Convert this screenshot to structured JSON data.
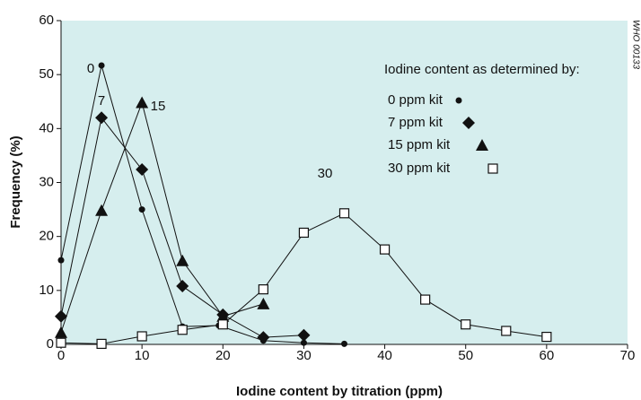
{
  "chart_data": {
    "type": "line",
    "x_label": "Iodine content by titration (ppm)",
    "y_label": "Frequency (%)",
    "legend_title": "Iodine content as determined by:",
    "credit": "WHO 00133",
    "xlim": [
      0,
      70
    ],
    "xticks": [
      0,
      10,
      20,
      30,
      40,
      50,
      60,
      70
    ],
    "ylim": [
      0,
      60
    ],
    "yticks": [
      0,
      10,
      20,
      30,
      40,
      50,
      60
    ],
    "background": "#d6eeee",
    "annotations": [
      "0",
      "7",
      "15",
      "30"
    ],
    "series": [
      {
        "name": "0 ppm kit",
        "marker": "circle",
        "color": "#111111",
        "x": [
          0,
          5,
          10,
          15,
          19.5,
          25,
          30,
          35
        ],
        "values": [
          15.6,
          51.7,
          25,
          3.3,
          3.5,
          0.7,
          0.3,
          0.1
        ]
      },
      {
        "name": "7 ppm kit",
        "marker": "diamond",
        "color": "#111111",
        "x": [
          0,
          5,
          10,
          15,
          20,
          25,
          30
        ],
        "values": [
          5.2,
          42,
          32.4,
          10.8,
          5.5,
          1.3,
          1.7
        ]
      },
      {
        "name": "15 ppm kit",
        "marker": "triangle",
        "color": "#111111",
        "x": [
          0,
          5,
          10,
          15,
          20,
          25
        ],
        "values": [
          2.2,
          24.8,
          44.8,
          15.5,
          5.2,
          7.5
        ]
      },
      {
        "name": "30 ppm kit",
        "marker": "square",
        "color": "#111111",
        "x": [
          0,
          5,
          10,
          15,
          20,
          25,
          30,
          35,
          40,
          45,
          50,
          55,
          60
        ],
        "values": [
          0.3,
          0.1,
          1.5,
          2.7,
          3.7,
          10.2,
          20.7,
          24.3,
          17.6,
          8.3,
          3.7,
          2.5,
          1.4
        ]
      }
    ]
  }
}
